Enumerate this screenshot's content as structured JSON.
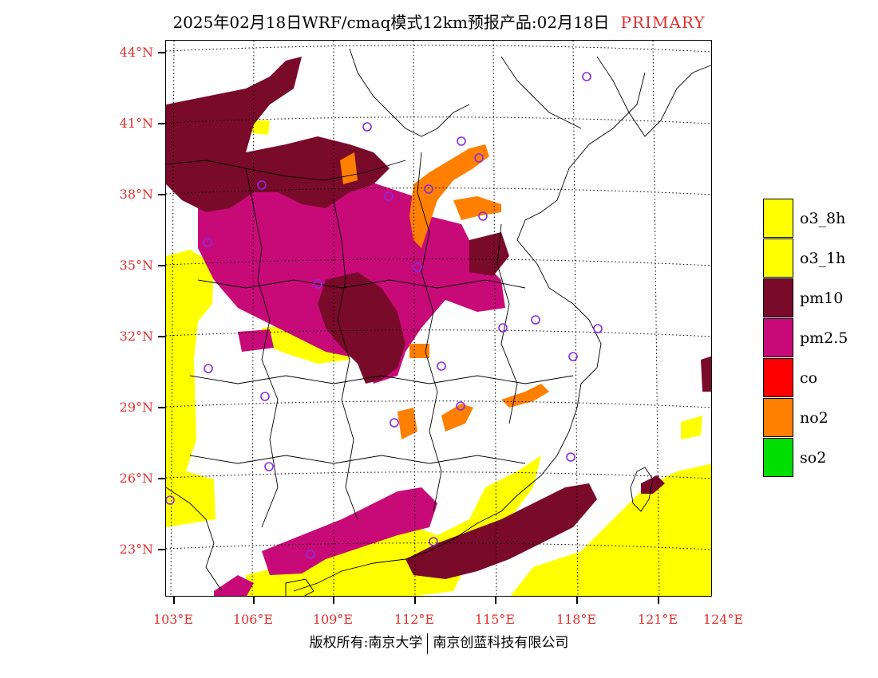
{
  "header": {
    "title": "2025年02月18日WRF/cmaq模式12km预报产品:02月18日",
    "tag": "PRIMARY"
  },
  "axes": {
    "latitudes": [
      "44°N",
      "41°N",
      "38°N",
      "35°N",
      "32°N",
      "29°N",
      "26°N",
      "23°N"
    ],
    "longitudes": [
      "103°E",
      "106°E",
      "109°E",
      "112°E",
      "115°E",
      "118°E",
      "121°E",
      "124°E"
    ]
  },
  "legend": [
    {
      "label": "o3_8h",
      "color": "#ffff00"
    },
    {
      "label": "o3_1h",
      "color": "#ffff00"
    },
    {
      "label": "pm10",
      "color": "#7a0a2a"
    },
    {
      "label": "pm2.5",
      "color": "#c80a78"
    },
    {
      "label": "co",
      "color": "#ff0000"
    },
    {
      "label": "no2",
      "color": "#ff7f00"
    },
    {
      "label": "so2",
      "color": "#00dd00"
    }
  ],
  "footer": {
    "left": "版权所有:南京大学",
    "right": "南京创蓝科技有限公司"
  }
}
